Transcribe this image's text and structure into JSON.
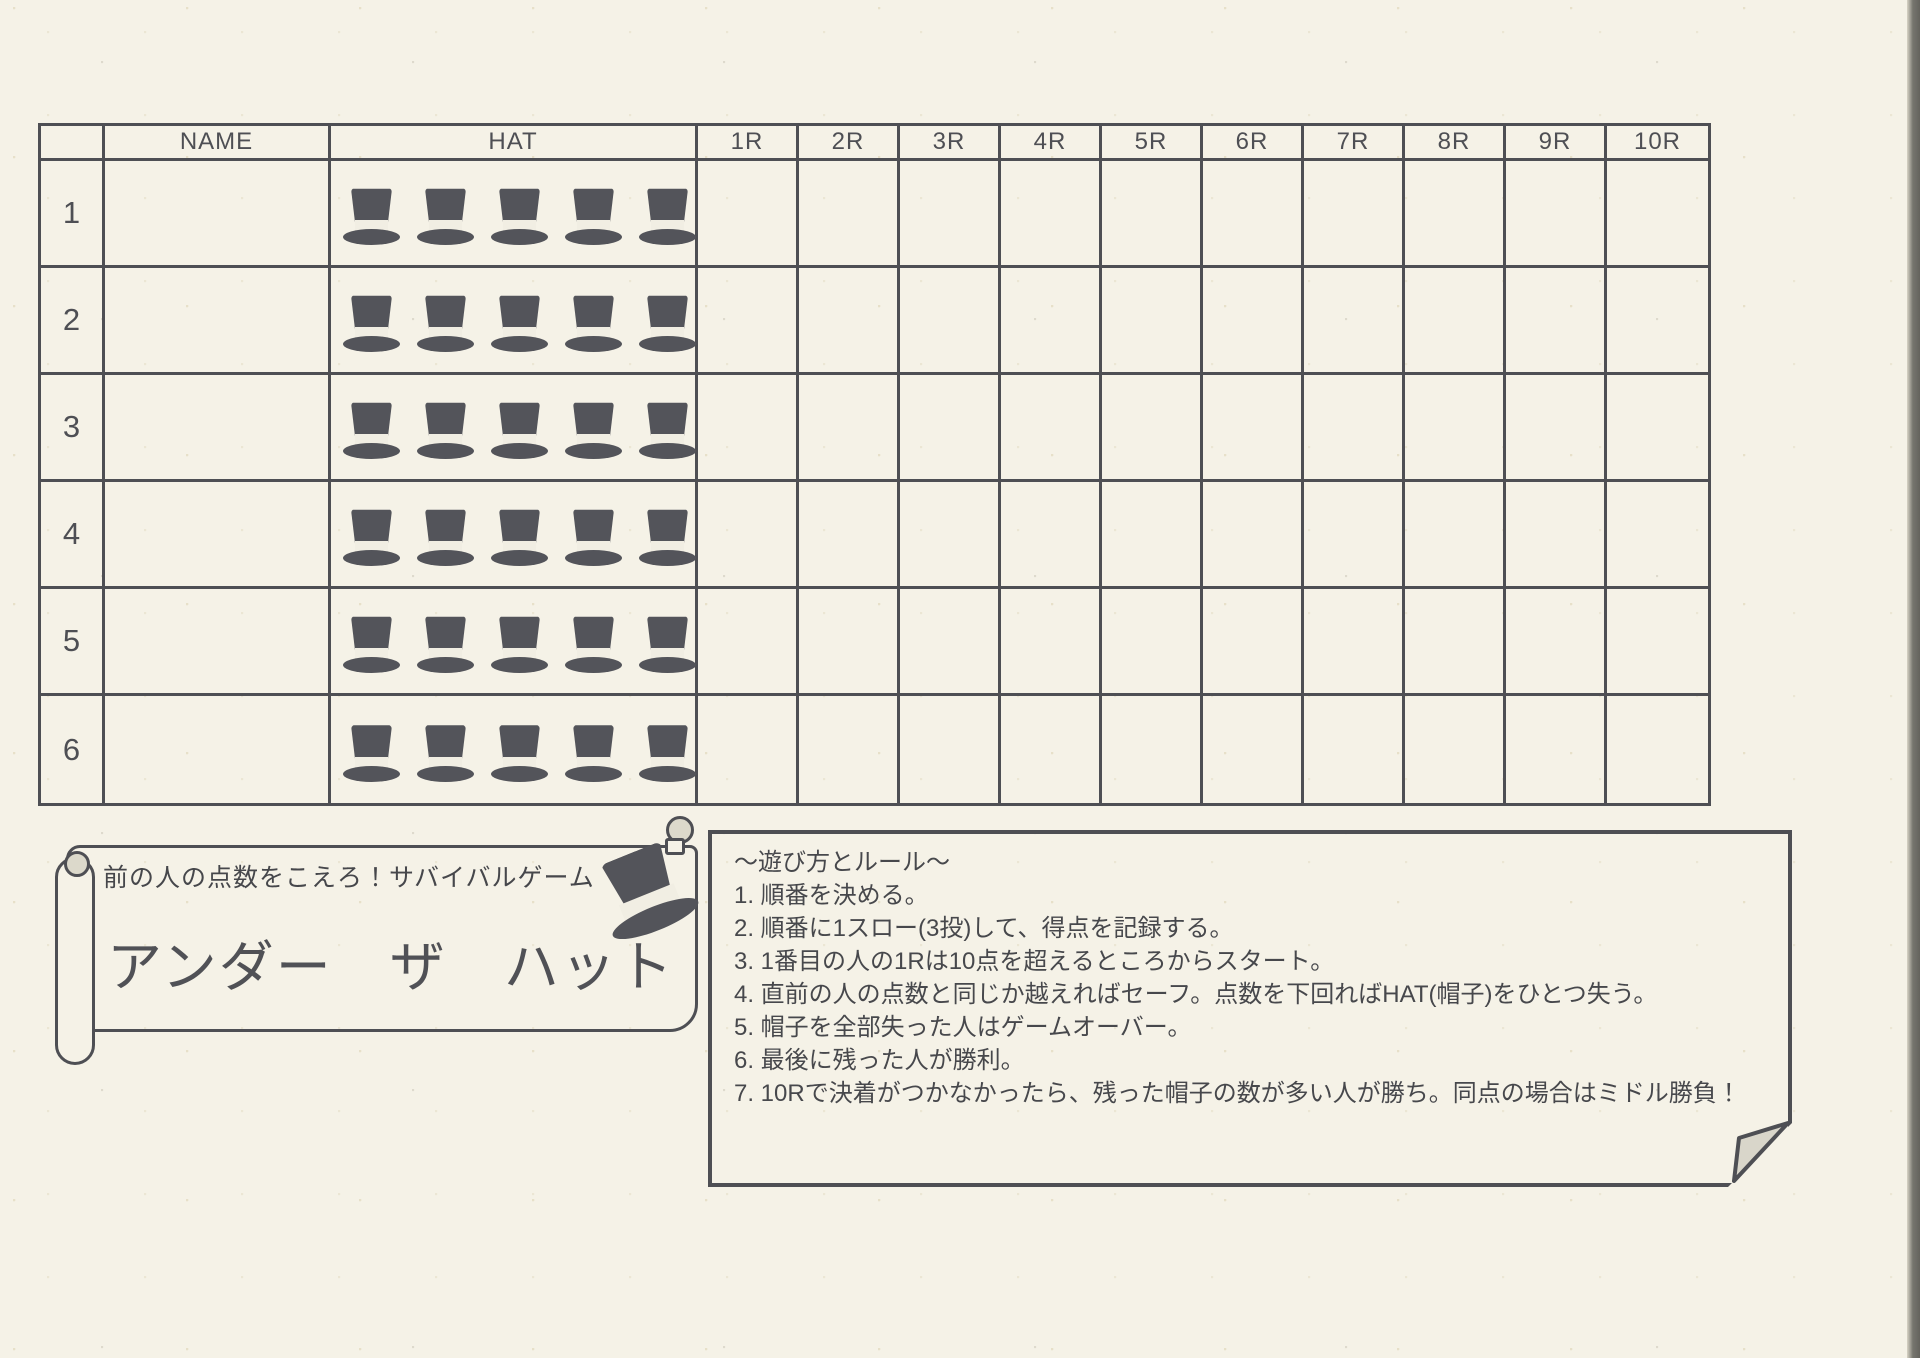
{
  "colors": {
    "paper": "#f5f2e7",
    "ink": "#4e4f54",
    "hat": "#53545a",
    "curl": "#dcd9cb",
    "fold": "#d9d6ca"
  },
  "table": {
    "corner_header": "",
    "name_header": "NAME",
    "hat_header": "HAT",
    "round_headers": [
      "1R",
      "2R",
      "3R",
      "4R",
      "5R",
      "6R",
      "7R",
      "8R",
      "9R",
      "10R"
    ],
    "hats_per_player": 5,
    "players": [
      {
        "num": "1"
      },
      {
        "num": "2"
      },
      {
        "num": "3"
      },
      {
        "num": "4"
      },
      {
        "num": "5"
      },
      {
        "num": "6"
      }
    ]
  },
  "banner": {
    "subtitle": "前の人の点数をこえろ！サバイバルゲーム",
    "title": "アンダー　ザ　ハット"
  },
  "rules": {
    "title": "〜遊び方とルール〜",
    "items": [
      "1. 順番を決める。",
      "2. 順番に1スロー(3投)して、得点を記録する。",
      "3. 1番目の人の1Rは10点を超えるところからスタート。",
      "4. 直前の人の点数と同じか越えればセーフ。点数を下回ればHAT(帽子)をひとつ失う。",
      "5. 帽子を全部失った人はゲームオーバー。",
      "6. 最後に残った人が勝利。",
      "7. 10Rで決着がつかなかったら、残った帽子の数が多い人が勝ち。同点の場合はミドル勝負！"
    ]
  }
}
